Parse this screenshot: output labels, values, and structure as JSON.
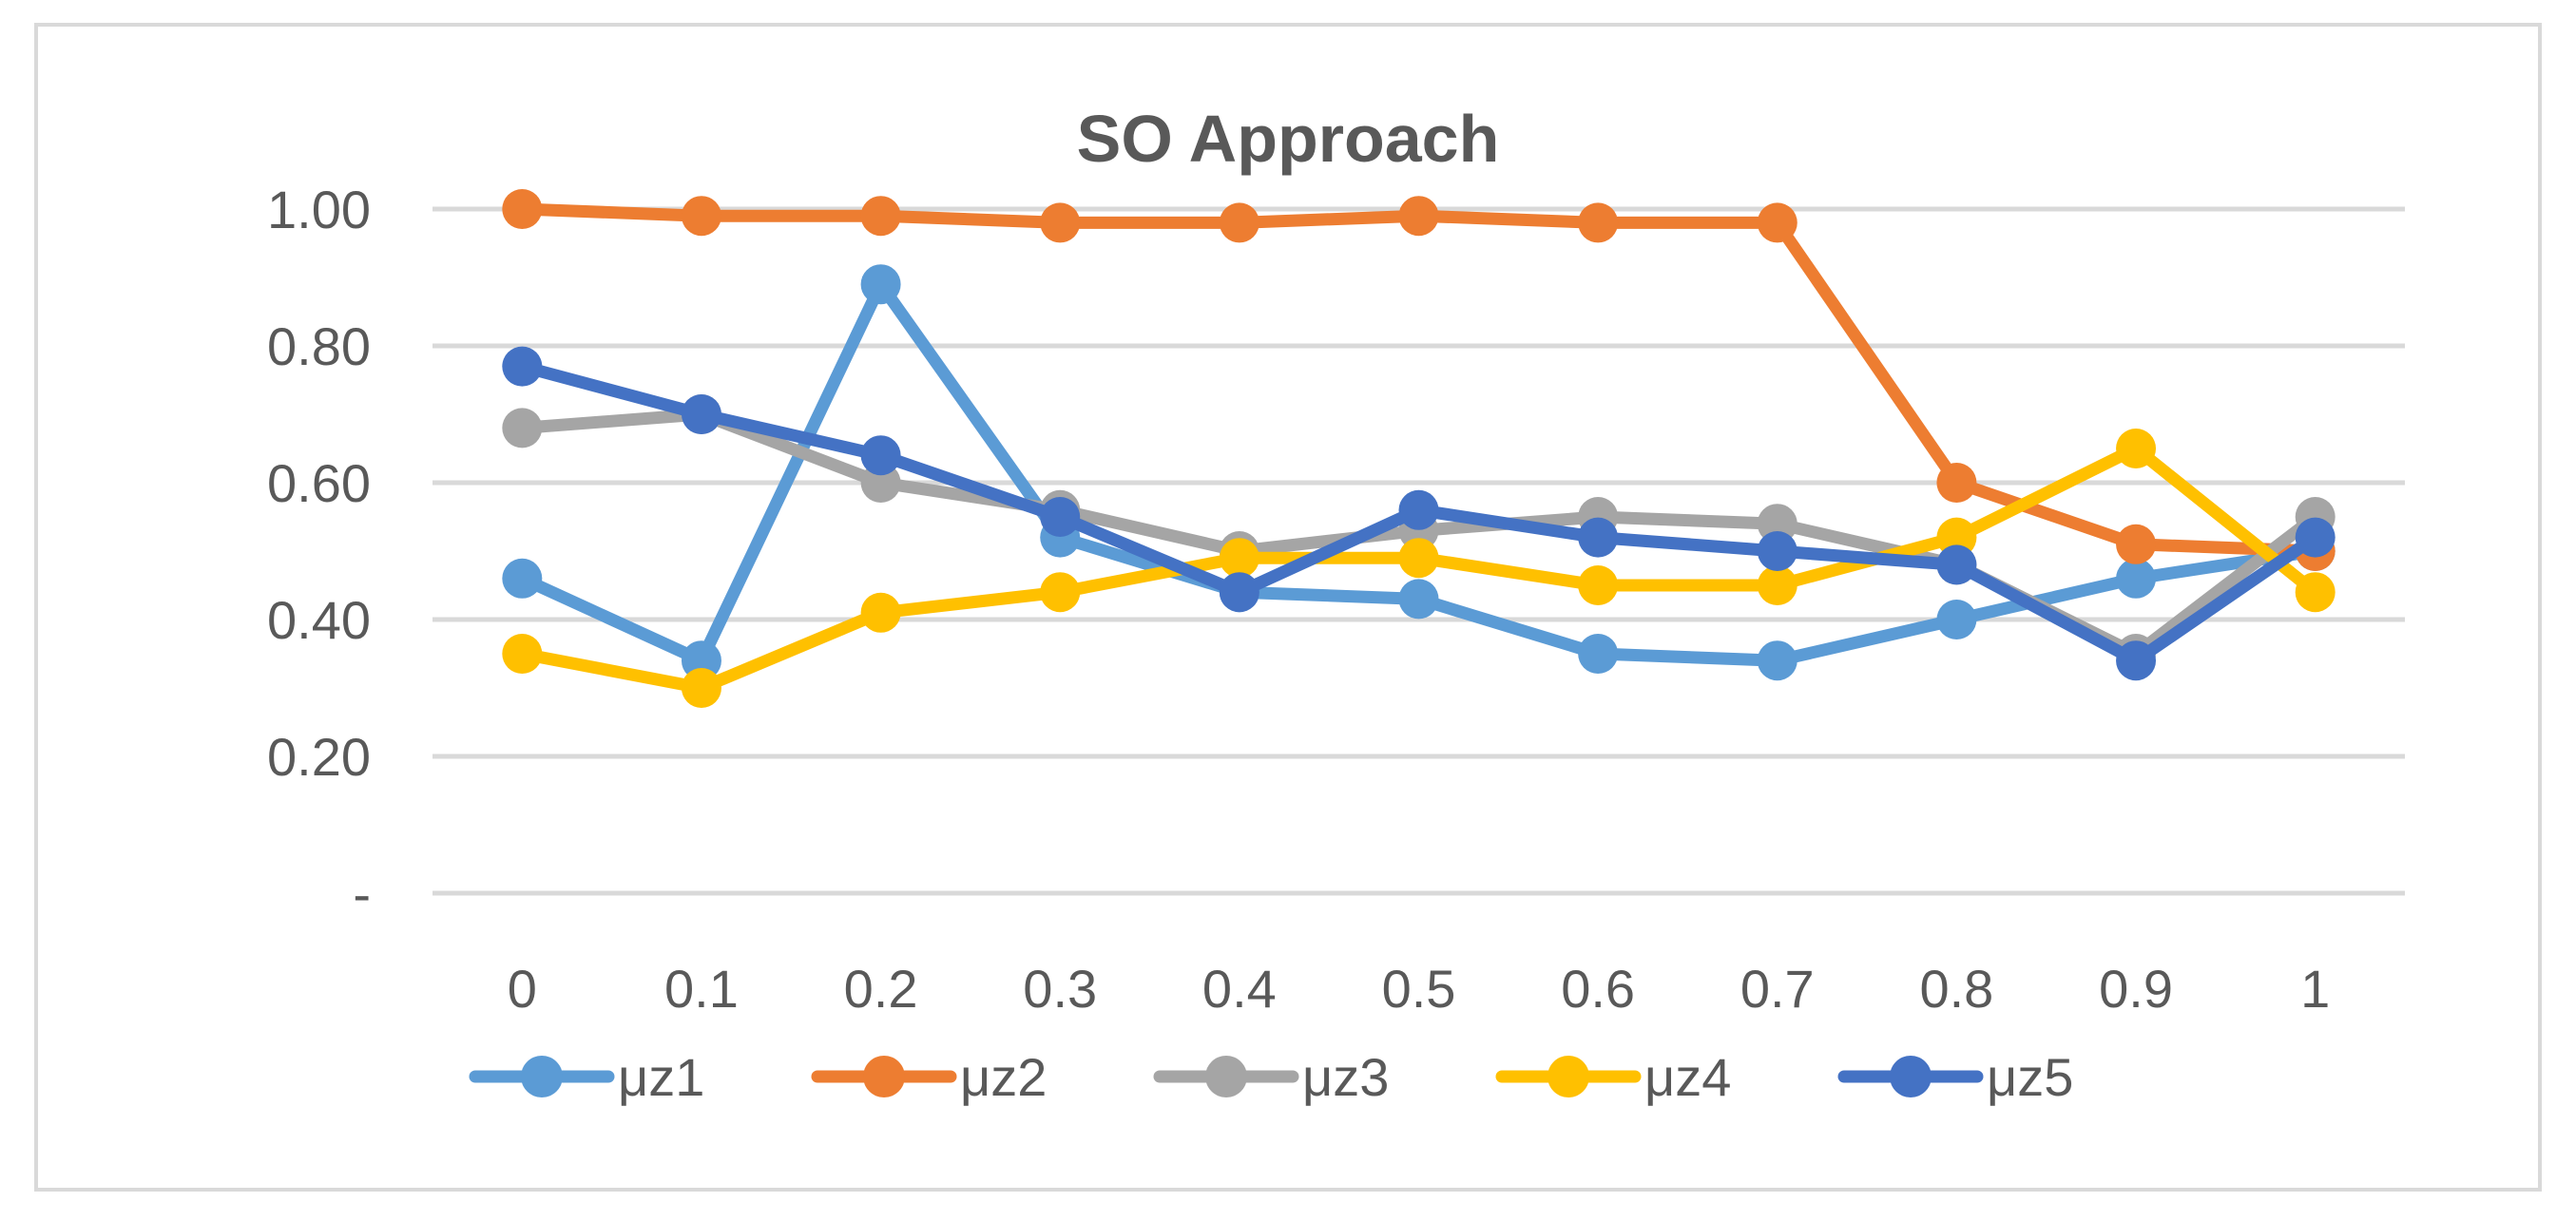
{
  "chart_data": {
    "type": "line",
    "title": "SO Approach",
    "xlabel": "",
    "ylabel": "",
    "categories": [
      "0",
      "0.1",
      "0.2",
      "0.3",
      "0.4",
      "0.5",
      "0.6",
      "0.7",
      "0.8",
      "0.9",
      "1"
    ],
    "y_tick_labels": [
      "-",
      "0.20",
      "0.40",
      "0.60",
      "0.80",
      "1.00"
    ],
    "y_tick_values": [
      0,
      0.2,
      0.4,
      0.6,
      0.8,
      1.0
    ],
    "ylim": [
      0,
      1.0
    ],
    "grid": true,
    "legend_position": "bottom",
    "series": [
      {
        "name": "μz1",
        "color": "#5B9BD5",
        "values": [
          0.46,
          0.34,
          0.89,
          0.52,
          0.44,
          0.43,
          0.35,
          0.34,
          0.4,
          0.46,
          0.5
        ]
      },
      {
        "name": "μz2",
        "color": "#ED7D31",
        "values": [
          1.0,
          0.99,
          0.99,
          0.98,
          0.98,
          0.99,
          0.98,
          0.98,
          0.6,
          0.51,
          0.5
        ]
      },
      {
        "name": "μz3",
        "color": "#A5A5A5",
        "values": [
          0.68,
          0.7,
          0.6,
          0.56,
          0.5,
          0.53,
          0.55,
          0.54,
          0.48,
          0.35,
          0.55
        ]
      },
      {
        "name": "μz4",
        "color": "#FFC000",
        "values": [
          0.35,
          0.3,
          0.41,
          0.44,
          0.49,
          0.49,
          0.45,
          0.45,
          0.52,
          0.65,
          0.44
        ]
      },
      {
        "name": "μz5",
        "color": "#4472C4",
        "values": [
          0.77,
          0.7,
          0.64,
          0.55,
          0.44,
          0.56,
          0.52,
          0.5,
          0.48,
          0.34,
          0.52
        ]
      }
    ]
  }
}
